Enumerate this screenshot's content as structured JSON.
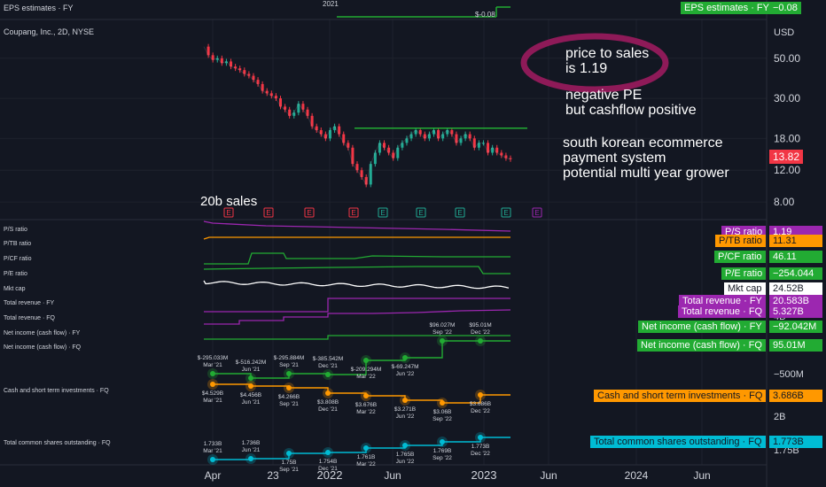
{
  "header": {
    "eps_label": "EPS estimates · FY",
    "eps_year": "2021",
    "eps_tag_label": "EPS estimates · FY",
    "eps_value": "−0.08",
    "eps_point_label": "$-0.08",
    "symbol_line": "Coupang, Inc., 2D, NYSE",
    "currency": "USD"
  },
  "notes": {
    "line1": "price to sales",
    "line2": "is 1.19",
    "line3": "negative PE",
    "line4": "but cashflow positive",
    "line5": "south korean ecommerce",
    "line6": "payment system",
    "line7": "potential multi year grower",
    "sales": "20b sales"
  },
  "price_axis": [
    "50.00",
    "30.00",
    "18.00",
    "12.00",
    "8.00"
  ],
  "last_price": "13.82",
  "time_axis": [
    "Apr",
    "23",
    "2022",
    "Jun",
    "2023",
    "Jun",
    "2024",
    "Jun"
  ],
  "indicator_labels": [
    "P/S ratio",
    "P/TB ratio",
    "P/CF ratio",
    "P/E ratio",
    "Mkt cap",
    "Total revenue · FY",
    "Total revenue · FQ",
    "Net income (cash flow) · FY",
    "Net income (cash flow) · FQ",
    "Cash and short term investments · FQ",
    "Total common shares outstanding · FQ"
  ],
  "tags": [
    {
      "label": "P/S ratio",
      "value": "1.19",
      "color": "#9c27b0"
    },
    {
      "label": "P/TB ratio",
      "value": "11.31",
      "color": "#ff9800"
    },
    {
      "label": "P/CF ratio",
      "value": "46.11",
      "color": "#22ab33"
    },
    {
      "label": "P/E ratio",
      "value": "−254.044",
      "color": "#22ab33"
    },
    {
      "label": "Mkt cap",
      "value": "24.52B",
      "color": "#ffffff"
    },
    {
      "label": "Total revenue · FY",
      "value": "20.583B",
      "color": "#9c27b0"
    },
    {
      "label": "Total revenue · FQ",
      "value": "5.327B",
      "color": "#9c27b0"
    },
    {
      "label": "Net income (cash flow) · FY",
      "value": "−92.042M",
      "color": "#22ab33"
    },
    {
      "label": "Net income (cash flow) · FQ",
      "value": "95.01M",
      "color": "#22ab33"
    },
    {
      "label": "Cash and short term investments · FQ",
      "value": "3.686B",
      "color": "#ff9800"
    },
    {
      "label": "Total common shares outstanding · FQ",
      "value": "1.773B",
      "color": "#00bcd4"
    }
  ],
  "sub_axis": [
    "4B",
    "−500M",
    "2B",
    "1.75B"
  ],
  "chart_data": [
    {
      "type": "line",
      "title": "Coupang, Inc., 2D, NYSE",
      "ylabel": "USD",
      "y_scale": "log",
      "ylim": [
        7,
        70
      ],
      "ticks_y": [
        50,
        30,
        18,
        12,
        8
      ],
      "x_ticks": [
        "Apr",
        "23",
        "2022",
        "Jun",
        "2023",
        "Jun",
        "2024",
        "Jun"
      ],
      "series": [
        {
          "values": [
            58,
            52,
            49,
            50,
            47,
            48,
            45,
            44,
            43,
            41,
            40,
            38,
            36,
            33,
            32,
            31,
            30,
            27,
            26,
            24,
            25,
            28,
            26,
            24,
            21,
            20,
            19,
            18,
            20,
            21,
            19,
            17,
            16,
            13,
            12,
            11,
            10,
            13,
            15,
            17,
            16,
            15,
            14,
            16,
            17,
            18,
            19,
            20,
            19,
            18,
            19,
            20,
            18,
            19,
            20,
            19,
            17,
            18,
            19,
            18,
            16,
            17,
            17,
            15,
            16,
            15,
            14.5,
            14,
            13.82
          ]
        }
      ],
      "horizontal_level": 20.5,
      "earnings_markers": [
        "E",
        "E",
        "E",
        "E",
        "E",
        "E",
        "E",
        "E",
        "E"
      ]
    },
    {
      "type": "line",
      "title": "Net income (cash flow) · FQ",
      "categories": [
        "Mar '21",
        "Jun '21",
        "Sep '21",
        "Dec '21",
        "Mar '22",
        "Jun '22",
        "Sep '22",
        "Dec '22"
      ],
      "values": [
        "$-295.033M",
        "$-516.242M",
        "$-295.884M",
        "$-385.542M",
        "$-209.294M",
        "$-69.247M",
        "$96.027M",
        "$95.01M"
      ]
    },
    {
      "type": "line",
      "title": "Cash and short term investments · FQ",
      "categories": [
        "Mar '21",
        "Jun '21",
        "Sep '21",
        "Dec '21",
        "Mar '22",
        "Jun '22",
        "Sep '22",
        "Dec '22"
      ],
      "values": [
        "$4.529B",
        "$4.456B",
        "$4.266B",
        "$3.808B",
        "$3.676B",
        "$3.271B",
        "$3.06B",
        "$3.686B"
      ]
    },
    {
      "type": "line",
      "title": "Total common shares outstanding · FQ",
      "categories": [
        "Mar '21",
        "Jun '21",
        "Sep '21",
        "Dec '21",
        "Mar '22",
        "Jun '22",
        "Sep '22",
        "Dec '22"
      ],
      "values": [
        "1.733B",
        "1.736B",
        "1.75B",
        "1.754B",
        "1.761B",
        "1.765B",
        "1.769B",
        "1.773B"
      ]
    }
  ]
}
